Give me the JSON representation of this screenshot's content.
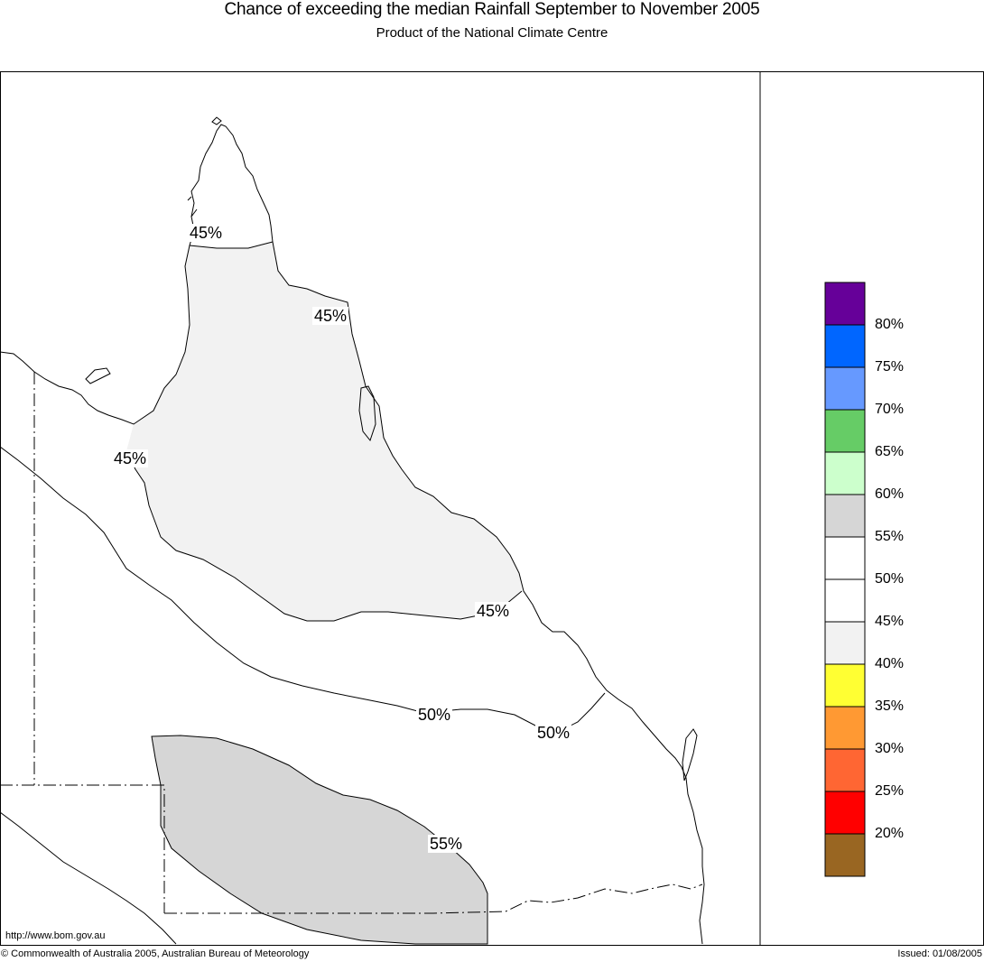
{
  "header": {
    "title": "Chance of exceeding the median Rainfall September to November 2005",
    "subtitle": "Product of the National Climate Centre"
  },
  "map": {
    "contour_labels": [
      "45%",
      "45%",
      "45%",
      "45%",
      "50%",
      "50%",
      "55%"
    ],
    "url": "http://www.bom.gov.au"
  },
  "legend": {
    "bins": [
      {
        "color": "#660099",
        "label": "80%"
      },
      {
        "color": "#0066ff",
        "label": "75%"
      },
      {
        "color": "#6699ff",
        "label": "70%"
      },
      {
        "color": "#66cc66",
        "label": "65%"
      },
      {
        "color": "#ccffcc",
        "label": "60%"
      },
      {
        "color": "#d6d6d6",
        "label": "55%"
      },
      {
        "color": "#ffffff",
        "label": "50%"
      },
      {
        "color": "#ffffff",
        "label": "45%"
      },
      {
        "color": "#f2f2f2",
        "label": "40%"
      },
      {
        "color": "#ffff33",
        "label": "35%"
      },
      {
        "color": "#ff9933",
        "label": "30%"
      },
      {
        "color": "#ff6633",
        "label": "25%"
      },
      {
        "color": "#ff0000",
        "label": "20%"
      },
      {
        "color": "#996622",
        "label": ""
      }
    ]
  },
  "footer": {
    "copyright": "© Commonwealth of Australia 2005, Australian Bureau of Meteorology",
    "issued": "Issued: 01/08/2005"
  }
}
